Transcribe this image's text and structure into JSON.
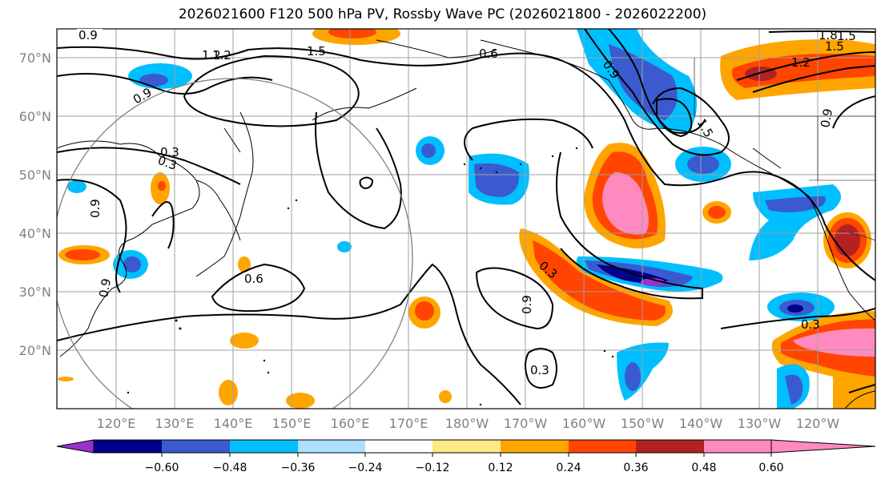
{
  "title": "2026021600 F120 500 hPa PV, Rossby Wave PC (2026021800 - 2026022200)",
  "lat_labels": [
    "70°N",
    "60°N",
    "50°N",
    "40°N",
    "30°N",
    "20°N"
  ],
  "lon_labels": [
    "120°E",
    "130°E",
    "140°E",
    "150°E",
    "160°E",
    "170°E",
    "180°W",
    "170°W",
    "160°W",
    "150°W",
    "140°W",
    "130°W",
    "120°W"
  ],
  "contour_labels": [
    "0.9",
    "1.2",
    "1.5",
    "0.6",
    "0.9",
    "1.2",
    "1.5",
    "0.9",
    "0.3",
    "0.9",
    "0.9",
    "0.6",
    "0.3",
    "0.9",
    "0.3",
    "0.3",
    "1.5",
    "0.9",
    "1.8",
    "1.5",
    "1.2",
    "0.3"
  ],
  "colorbar": {
    "ticks": [
      "−0.60",
      "−0.48",
      "−0.36",
      "−0.24",
      "−0.12",
      "0.12",
      "0.24",
      "0.36",
      "0.48",
      "0.60"
    ],
    "colors": [
      "#9932CC",
      "#00008B",
      "#3A5BCF",
      "#00BFFF",
      "#ADDFFF",
      "#FFFFFF",
      "#FFE987",
      "#FFA500",
      "#FF4500",
      "#B22222",
      "#FF8ABF"
    ]
  }
}
